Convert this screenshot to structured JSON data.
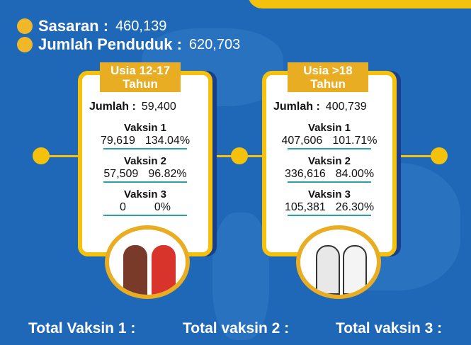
{
  "header": {
    "sasaran_label": "Sasaran :",
    "sasaran_value": "460,139",
    "penduduk_label": "Jumlah Penduduk :",
    "penduduk_value": "620,703"
  },
  "cards": [
    {
      "title1": "Usia 12-17",
      "title2": "Tahun",
      "jumlah_label": "Jumlah :",
      "jumlah": "59,400",
      "vaksin": [
        {
          "label": "Vaksin 1",
          "count": "79,619",
          "pct": "134.04%"
        },
        {
          "label": "Vaksin 2",
          "count": "57,509",
          "pct": "96.82%"
        },
        {
          "label": "Vaksin 3",
          "count": "0",
          "pct": "0%"
        }
      ]
    },
    {
      "title1": "Usia >18",
      "title2": "Tahun",
      "jumlah_label": "Jumlah :",
      "jumlah": "400,739",
      "vaksin": [
        {
          "label": "Vaksin 1",
          "count": "407,606",
          "pct": "101.71%"
        },
        {
          "label": "Vaksin 2",
          "count": "336,616",
          "pct": "84.00%"
        },
        {
          "label": "Vaksin 3",
          "count": "105,381",
          "pct": "26.30%"
        }
      ]
    }
  ],
  "totals": [
    "Total Vaksin 1 :",
    "Total vaksin 2 :",
    "Total vaksin 3 :"
  ],
  "colors": {
    "background": "#1f68b8",
    "accent": "#f4c20d",
    "tag": "#e8ad22"
  }
}
